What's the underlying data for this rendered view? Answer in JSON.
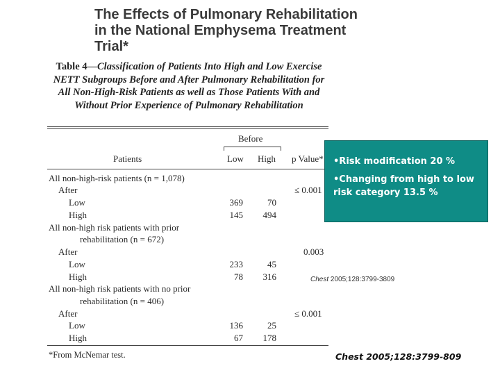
{
  "slide": {
    "title_lines": [
      "The Effects of Pulmonary Rehabilitation",
      "in the National Emphysema Treatment",
      "Trial*"
    ]
  },
  "table": {
    "caption_lead": "Table 4",
    "caption_rest": "—Classification of Patients Into High and Low Exercise NETT Subgroups Before and After Pulmonary Rehabilitation for All Non-High-Risk Patients as well as Those Patients With and Without Prior Experience of Pulmonary Rehabilitation",
    "header": {
      "group": "Before",
      "patients": "Patients",
      "low": "Low",
      "high": "High",
      "p_value": "p Value*"
    },
    "rows": [
      {
        "label": "All non-high-risk patients (n = 1,078)",
        "low": "",
        "high": "",
        "p": ""
      },
      {
        "label": "After",
        "low": "",
        "high": "",
        "p": "≤ 0.001"
      },
      {
        "label": "Low",
        "low": "369",
        "high": "70",
        "p": ""
      },
      {
        "label": "High",
        "low": "145",
        "high": "494",
        "p": ""
      },
      {
        "label": "All non-high risk patients with prior",
        "low": "",
        "high": "",
        "p": ""
      },
      {
        "label": "rehabilitation (n = 672)",
        "low": "",
        "high": "",
        "p": ""
      },
      {
        "label": "After",
        "low": "",
        "high": "",
        "p": "0.003"
      },
      {
        "label": "Low",
        "low": "233",
        "high": "45",
        "p": ""
      },
      {
        "label": "High",
        "low": "78",
        "high": "316",
        "p": ""
      },
      {
        "label": "All non-high risk patients with no prior",
        "low": "",
        "high": "",
        "p": ""
      },
      {
        "label": "rehabilitation (n = 406)",
        "low": "",
        "high": "",
        "p": ""
      },
      {
        "label": "After",
        "low": "",
        "high": "",
        "p": "≤ 0.001"
      },
      {
        "label": "Low",
        "low": "136",
        "high": "25",
        "p": ""
      },
      {
        "label": "High",
        "low": "67",
        "high": "178",
        "p": ""
      }
    ],
    "footnote": "*From McNemar test."
  },
  "callout": {
    "line1": "•Risk modification 20 %",
    "line2": "•Changing from high to low risk category 13.5 %"
  },
  "small_citation": {
    "journal": "Chest",
    "details": "2005;128:3799-3809"
  },
  "citation": "Chest 2005;128:3799-809",
  "colors": {
    "callout_bg": "#0f8c86",
    "callout_text": "#ffffff"
  }
}
